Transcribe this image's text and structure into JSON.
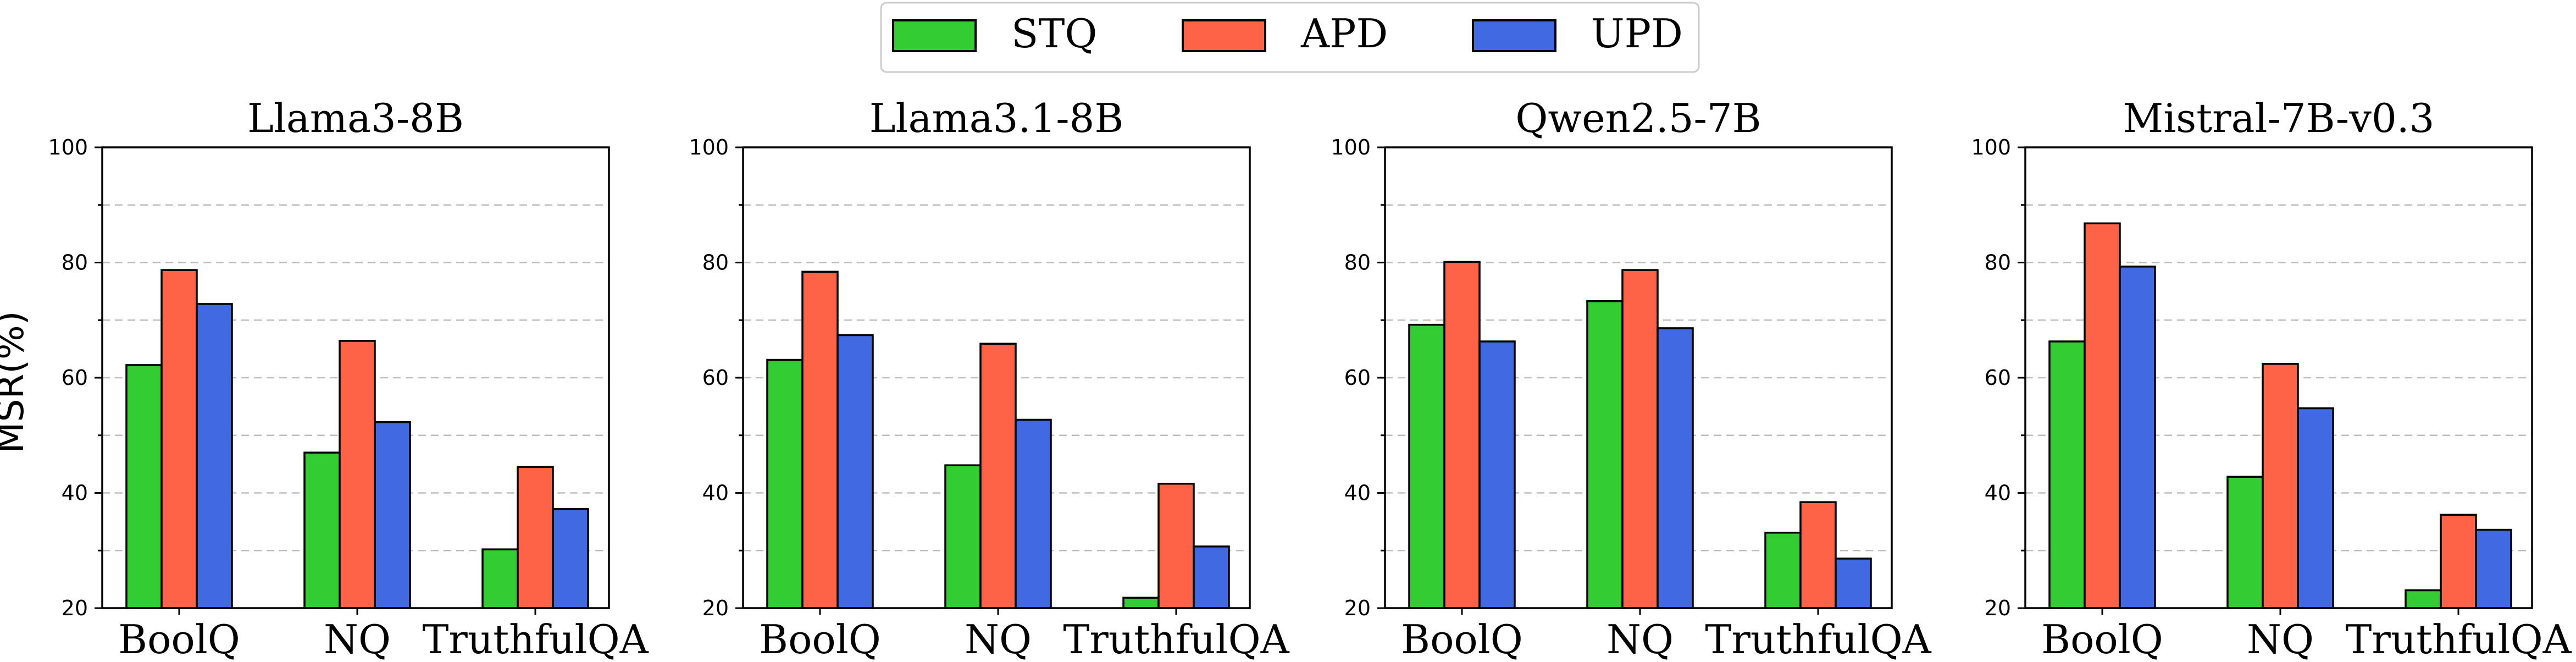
{
  "legend": {
    "items": [
      {
        "name": "STQ",
        "color": "#33cc33"
      },
      {
        "name": "APD",
        "color": "#ff6347"
      },
      {
        "name": "UPD",
        "color": "#4169e1"
      }
    ]
  },
  "ylabel": "MSR(%)",
  "chart_data": [
    {
      "type": "bar",
      "title": "Llama3-8B",
      "categories": [
        "BoolQ",
        "NQ",
        "TruthfulQA"
      ],
      "series": [
        {
          "name": "STQ",
          "values": [
            62.2,
            47.0,
            30.2
          ]
        },
        {
          "name": "APD",
          "values": [
            78.7,
            66.4,
            44.5
          ]
        },
        {
          "name": "UPD",
          "values": [
            72.8,
            52.3,
            37.2
          ]
        }
      ],
      "ylim": [
        20,
        100
      ],
      "yticks": [
        20,
        40,
        60,
        80,
        100
      ],
      "grid": true
    },
    {
      "type": "bar",
      "title": "Llama3.1-8B",
      "categories": [
        "BoolQ",
        "NQ",
        "TruthfulQA"
      ],
      "series": [
        {
          "name": "STQ",
          "values": [
            63.1,
            44.8,
            21.8
          ]
        },
        {
          "name": "APD",
          "values": [
            78.4,
            65.9,
            41.6
          ]
        },
        {
          "name": "UPD",
          "values": [
            67.4,
            52.7,
            30.7
          ]
        }
      ],
      "ylim": [
        20,
        100
      ],
      "yticks": [
        20,
        40,
        60,
        80,
        100
      ],
      "grid": true
    },
    {
      "type": "bar",
      "title": "Qwen2.5-7B",
      "categories": [
        "BoolQ",
        "NQ",
        "TruthfulQA"
      ],
      "series": [
        {
          "name": "STQ",
          "values": [
            69.2,
            73.3,
            33.1
          ]
        },
        {
          "name": "APD",
          "values": [
            80.1,
            78.7,
            38.4
          ]
        },
        {
          "name": "UPD",
          "values": [
            66.3,
            68.6,
            28.6
          ]
        }
      ],
      "ylim": [
        20,
        100
      ],
      "yticks": [
        20,
        40,
        60,
        80,
        100
      ],
      "grid": true
    },
    {
      "type": "bar",
      "title": "Mistral-7B-v0.3",
      "categories": [
        "BoolQ",
        "NQ",
        "TruthfulQA"
      ],
      "series": [
        {
          "name": "STQ",
          "values": [
            66.3,
            42.8,
            23.1
          ]
        },
        {
          "name": "APD",
          "values": [
            86.8,
            62.4,
            36.2
          ]
        },
        {
          "name": "UPD",
          "values": [
            79.3,
            54.7,
            33.6
          ]
        }
      ],
      "ylim": [
        20,
        100
      ],
      "yticks": [
        20,
        40,
        60,
        80,
        100
      ],
      "grid": true
    }
  ]
}
